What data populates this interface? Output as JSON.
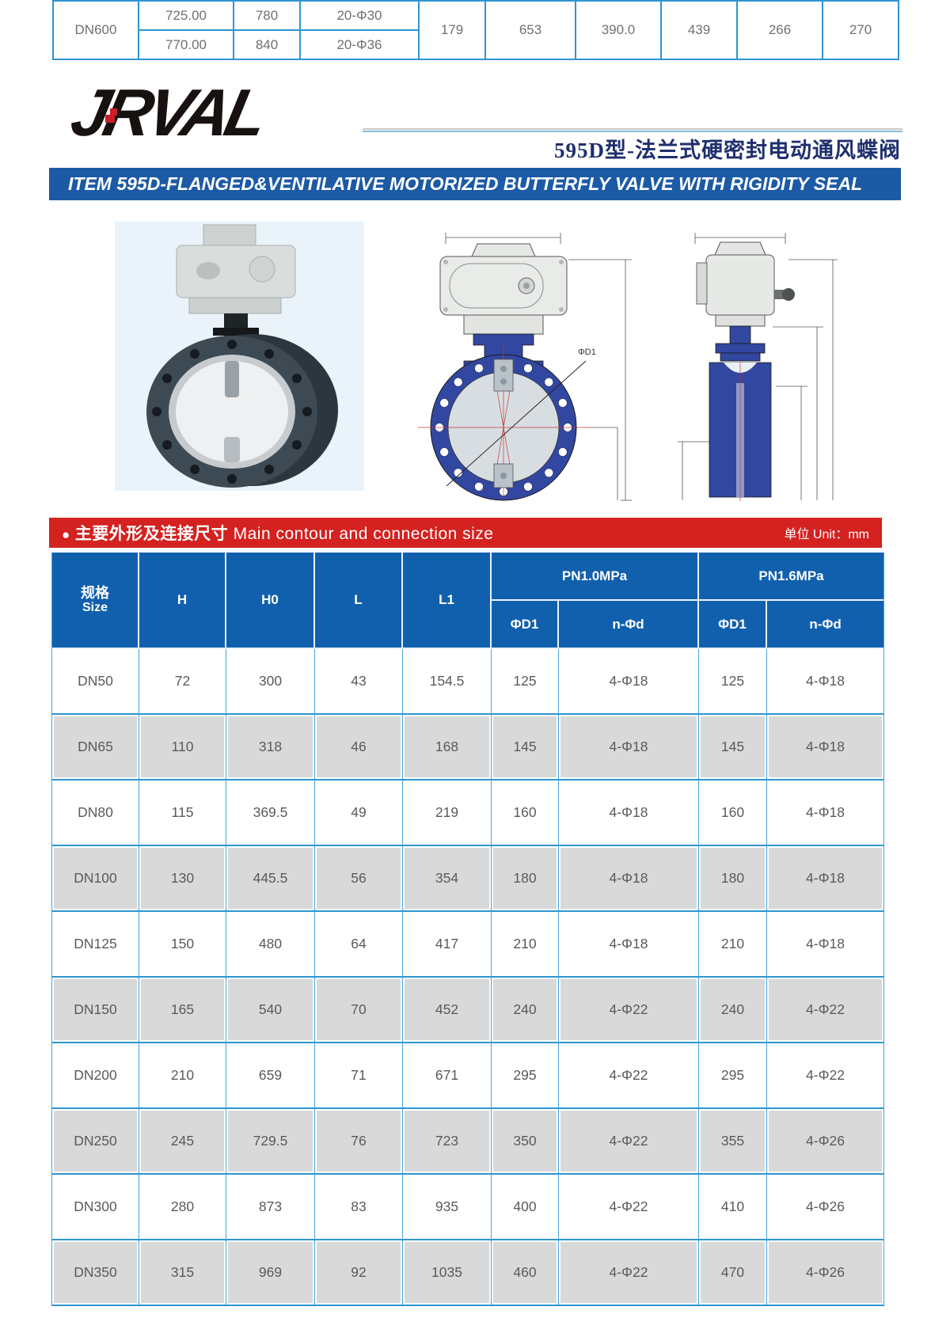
{
  "top_table": {
    "size": "DN600",
    "sub_rows": [
      [
        "725.00",
        "780",
        "20-Φ30"
      ],
      [
        "770.00",
        "840",
        "20-Φ36"
      ]
    ],
    "merged": [
      "179",
      "653",
      "390.0",
      "439",
      "266",
      "270"
    ]
  },
  "brand": {
    "logo_text": "JRVAL"
  },
  "header": {
    "title_cn": "595D型-法兰式硬密封电动通风蝶阀",
    "banner_en": "ITEM 595D-FLANGED&VENTILATIVE MOTORIZED BUTTERFLY VALVE WITH RIGIDITY SEAL"
  },
  "figures": {
    "front_dim_label": "ΦD1"
  },
  "section_bar": {
    "bullet": "●",
    "heading_cn": "主要外形及连接尺寸",
    "heading_en": "Main contour and connection size",
    "unit_label": "单位 Unit：mm"
  },
  "size_table": {
    "col_headers": {
      "size_cn": "规格",
      "size_en": "Size",
      "h": "H",
      "h0": "H0",
      "l": "L",
      "l1": "L1",
      "pn10": "PN1.0MPa",
      "pn16": "PN1.6MPa",
      "d1": "ΦD1",
      "nd": "n-Φd"
    },
    "rows": [
      {
        "size": "DN50",
        "h": "72",
        "h0": "300",
        "l": "43",
        "l1": "154.5",
        "pn10_d1": "125",
        "pn10_nd": "4-Φ18",
        "pn16_d1": "125",
        "pn16_nd": "4-Φ18"
      },
      {
        "size": "DN65",
        "h": "110",
        "h0": "318",
        "l": "46",
        "l1": "168",
        "pn10_d1": "145",
        "pn10_nd": "4-Φ18",
        "pn16_d1": "145",
        "pn16_nd": "4-Φ18"
      },
      {
        "size": "DN80",
        "h": "115",
        "h0": "369.5",
        "l": "49",
        "l1": "219",
        "pn10_d1": "160",
        "pn10_nd": "4-Φ18",
        "pn16_d1": "160",
        "pn16_nd": "4-Φ18"
      },
      {
        "size": "DN100",
        "h": "130",
        "h0": "445.5",
        "l": "56",
        "l1": "354",
        "pn10_d1": "180",
        "pn10_nd": "4-Φ18",
        "pn16_d1": "180",
        "pn16_nd": "4-Φ18"
      },
      {
        "size": "DN125",
        "h": "150",
        "h0": "480",
        "l": "64",
        "l1": "417",
        "pn10_d1": "210",
        "pn10_nd": "4-Φ18",
        "pn16_d1": "210",
        "pn16_nd": "4-Φ18"
      },
      {
        "size": "DN150",
        "h": "165",
        "h0": "540",
        "l": "70",
        "l1": "452",
        "pn10_d1": "240",
        "pn10_nd": "4-Φ22",
        "pn16_d1": "240",
        "pn16_nd": "4-Φ22"
      },
      {
        "size": "DN200",
        "h": "210",
        "h0": "659",
        "l": "71",
        "l1": "671",
        "pn10_d1": "295",
        "pn10_nd": "4-Φ22",
        "pn16_d1": "295",
        "pn16_nd": "4-Φ22"
      },
      {
        "size": "DN250",
        "h": "245",
        "h0": "729.5",
        "l": "76",
        "l1": "723",
        "pn10_d1": "350",
        "pn10_nd": "4-Φ22",
        "pn16_d1": "355",
        "pn16_nd": "4-Φ26"
      },
      {
        "size": "DN300",
        "h": "280",
        "h0": "873",
        "l": "83",
        "l1": "935",
        "pn10_d1": "400",
        "pn10_nd": "4-Φ22",
        "pn16_d1": "410",
        "pn16_nd": "4-Φ26"
      },
      {
        "size": "DN350",
        "h": "315",
        "h0": "969",
        "l": "92",
        "l1": "1035",
        "pn10_d1": "460",
        "pn10_nd": "4-Φ22",
        "pn16_d1": "470",
        "pn16_nd": "4-Φ26"
      }
    ]
  },
  "colors": {
    "header_blue": "#1160ae",
    "banner_blue": "#1c5aa5",
    "banner_red": "#d32220",
    "grid_blue": "#45a5da",
    "grid_blue_strong": "#2f95d2",
    "row_gray": "#d9d9d9",
    "title_navy": "#1f2f6e",
    "valve_blue": "#32479f"
  }
}
